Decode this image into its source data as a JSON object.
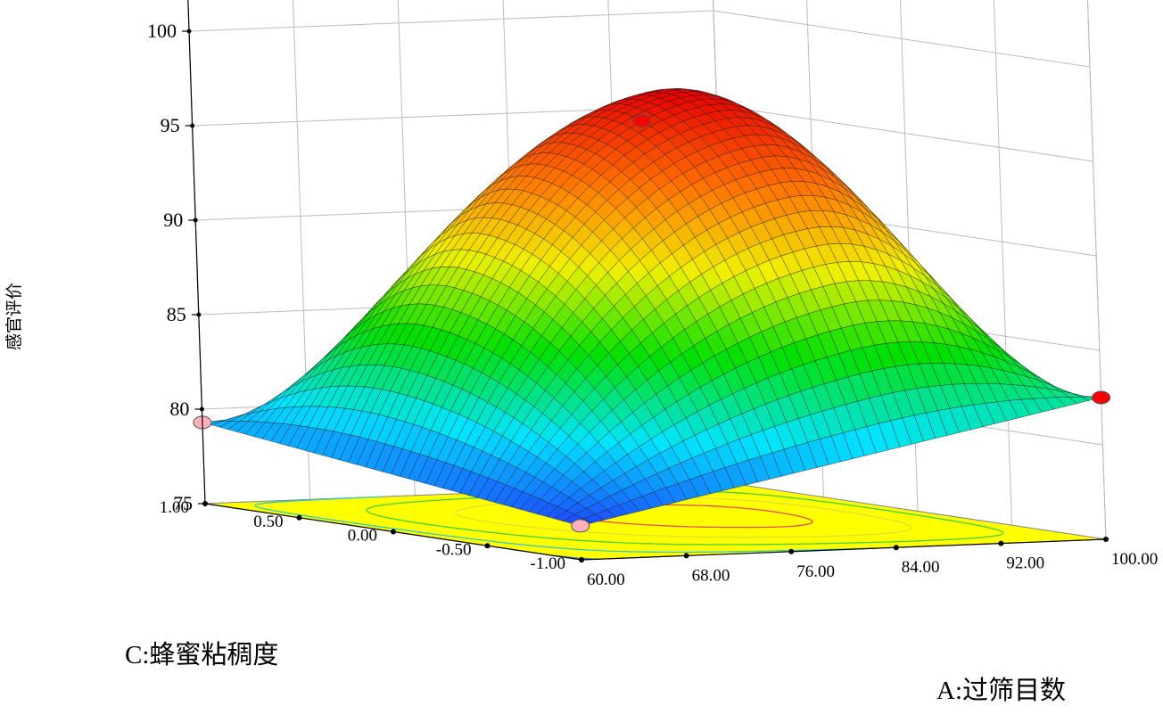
{
  "chart_data": {
    "type": "surface3d",
    "z_axis": {
      "label": "感官评价",
      "range": [
        75,
        100
      ],
      "ticks": [
        "75",
        "80",
        "85",
        "90",
        "95",
        "100"
      ]
    },
    "a_axis": {
      "label": "A:过筛目数",
      "range": [
        60,
        100
      ],
      "ticks": [
        "60.00",
        "68.00",
        "76.00",
        "84.00",
        "92.00",
        "100.00"
      ]
    },
    "c_axis": {
      "label": "C:蜂蜜粘稠度",
      "range": [
        -1,
        1
      ],
      "ticks": [
        "-1.00",
        "-0.50",
        "0.00",
        "0.50",
        "1.00"
      ]
    },
    "surface": {
      "corners": [
        {
          "A": 60,
          "C": -1,
          "value": 76.8
        },
        {
          "A": 60,
          "C": 1,
          "value": 79.3
        },
        {
          "A": 100,
          "C": -1,
          "value": 82.5
        },
        {
          "A": 100,
          "C": 1,
          "value": 81.3
        }
      ],
      "peak": {
        "A": 84.5,
        "C": 0.15,
        "value": 97.5
      },
      "color_scale": [
        "#1e3cff",
        "#00e5ff",
        "#00e000",
        "#f0f000",
        "#ff7000",
        "#e80000"
      ]
    },
    "design_points": [
      {
        "A": 60,
        "C": -1,
        "value": 76.8,
        "color": "#ffb0b8"
      },
      {
        "A": 60,
        "C": 1,
        "value": 79.3,
        "color": "#ffb0b8"
      },
      {
        "A": 100,
        "C": -1,
        "value": 82.5,
        "color": "#ff0000"
      },
      {
        "A": 80,
        "C": 0,
        "value": 96.2,
        "color": "#ff0000"
      }
    ],
    "floor_color": "#ffff00",
    "contours": [
      {
        "value": 95,
        "color": "#e05050"
      },
      {
        "value": 90,
        "color": "#e0e030"
      },
      {
        "value": 85,
        "color": "#40d040"
      },
      {
        "value": 80,
        "color": "#30c8c8"
      },
      {
        "value": 77,
        "color": "#3080e0"
      }
    ]
  }
}
